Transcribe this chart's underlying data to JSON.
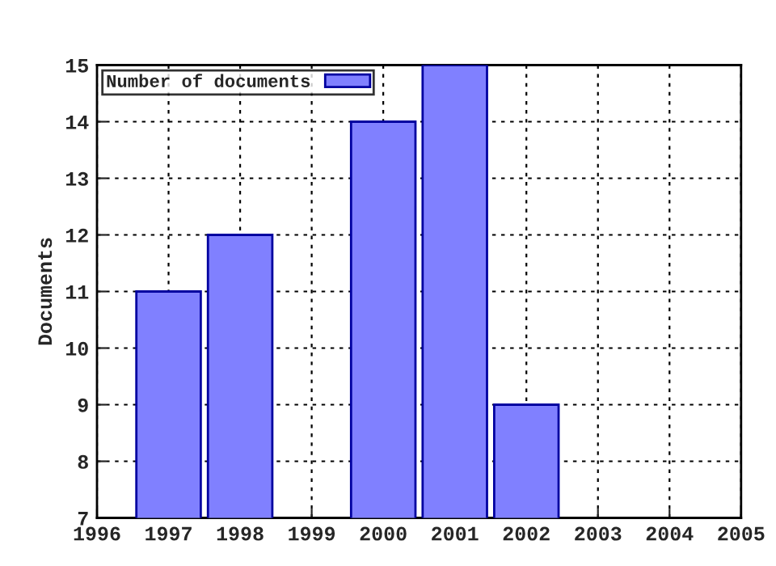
{
  "chart_data": {
    "type": "bar",
    "ylabel": "Documents",
    "x": [
      1997,
      1998,
      2000,
      2001,
      2002
    ],
    "series": [
      {
        "name": "Number of documents",
        "color": "#8080ff",
        "values": [
          11,
          12,
          14,
          15,
          9
        ]
      }
    ],
    "xlim": [
      1996,
      2005
    ],
    "xticks": [
      1996,
      1997,
      1998,
      1999,
      2000,
      2001,
      2002,
      2003,
      2004,
      2005
    ],
    "ylim": [
      7,
      15
    ],
    "yticks": [
      7,
      8,
      9,
      10,
      11,
      12,
      13,
      14,
      15
    ],
    "grid": true,
    "legend": "top left"
  }
}
